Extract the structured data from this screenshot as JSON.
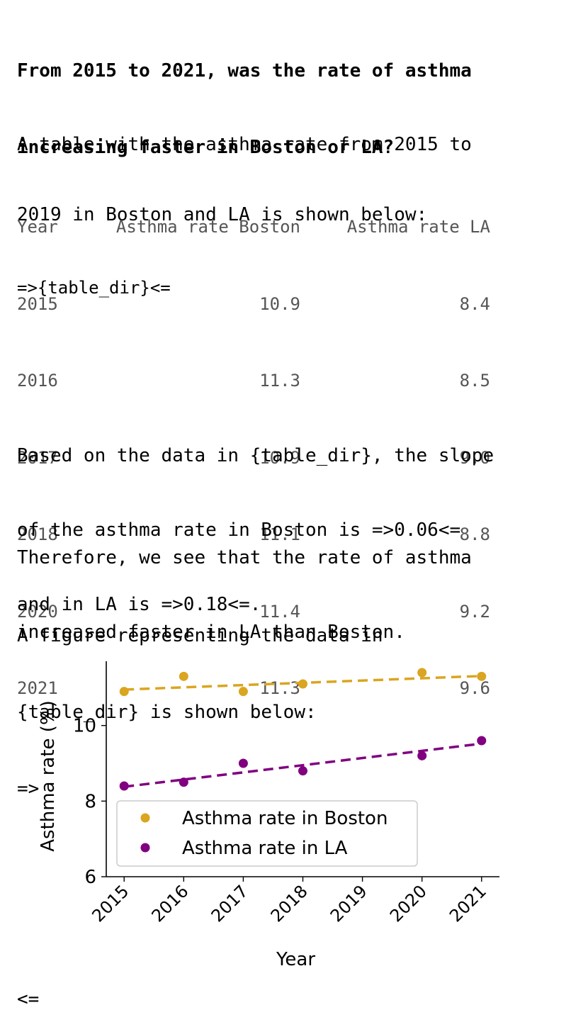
{
  "question": {
    "line1": "From 2015 to 2021, was the rate of asthma",
    "line2": "increasing faster in Boston or LA?"
  },
  "intro": {
    "line1": "A table with the asthma rate from 2015 to",
    "line2": "2019 in Boston and LA is shown below:",
    "marker": "=>{table_dir}<="
  },
  "table": {
    "headers": [
      "Year",
      "Asthma rate Boston",
      "Asthma rate LA"
    ],
    "rows": [
      [
        "2015",
        "10.9",
        "8.4"
      ],
      [
        "2016",
        "11.3",
        "8.5"
      ],
      [
        "2017",
        "10.9",
        "9.0"
      ],
      [
        "2018",
        "11.1",
        "8.8"
      ],
      [
        "2020",
        "11.4",
        "9.2"
      ],
      [
        "2021",
        "11.3",
        "9.6"
      ]
    ]
  },
  "analysis": {
    "line1": "Based on the data in {table_dir}, the slope",
    "line2": "of the asthma rate in Boston is =>0.06<=",
    "line3": "and in LA is =>0.18<=."
  },
  "conclusion": {
    "line1": "Therefore, we see that the rate of asthma",
    "line2": "increased faster in LA than Boston."
  },
  "figure_intro": {
    "line1": "A figure representing the data in",
    "line2": "{table_dir} is shown below:",
    "open_marker": "=>",
    "close_marker": "<="
  },
  "chart_data": {
    "type": "scatter",
    "xlabel": "Year",
    "ylabel": "Asthma rate (%)",
    "xlim": [
      2014.7,
      2021.3
    ],
    "ylim": [
      6,
      11.7
    ],
    "x_ticks": [
      2015,
      2016,
      2017,
      2018,
      2019,
      2020,
      2021
    ],
    "y_ticks": [
      6,
      8,
      10
    ],
    "legend_position": "lower-left",
    "series": [
      {
        "name": "Asthma rate in Boston",
        "color": "#DAA520",
        "x": [
          2015,
          2016,
          2017,
          2018,
          2020,
          2021
        ],
        "y": [
          10.9,
          11.3,
          10.9,
          11.1,
          11.4,
          11.3
        ],
        "trend": [
          10.95,
          11.31
        ]
      },
      {
        "name": "Asthma rate in LA",
        "color": "#800080",
        "x": [
          2015,
          2016,
          2017,
          2018,
          2020,
          2021
        ],
        "y": [
          8.4,
          8.5,
          9.0,
          8.8,
          9.2,
          9.6
        ],
        "trend": [
          8.38,
          9.52
        ]
      }
    ]
  }
}
